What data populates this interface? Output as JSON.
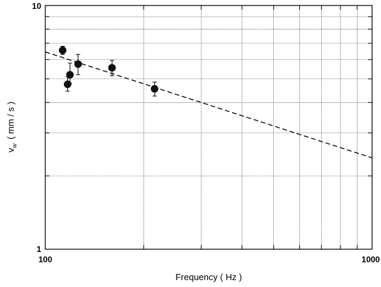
{
  "chart_data": {
    "type": "scatter",
    "xlabel": "Frequency  ( Hz )",
    "ylabel_main": "v",
    "ylabel_sub": "w",
    "ylabel_unit": "( mm / s )",
    "x_scale": "log",
    "y_scale": "log",
    "xlim": [
      100,
      1000
    ],
    "ylim": [
      1,
      10
    ],
    "x_tick_labels": [
      "100",
      "1000"
    ],
    "y_tick_labels": [
      "1",
      "10"
    ],
    "grid": true,
    "colors": {
      "points": "#111111",
      "fit_line": "#000000",
      "grid": "#000000"
    },
    "series": [
      {
        "marker": "filled-circle",
        "points": [
          {
            "x": 113,
            "y": 6.55,
            "err_low": 6.3,
            "err_high": 6.8
          },
          {
            "x": 117,
            "y": 4.75,
            "err_low": 4.45,
            "err_high": 5.1
          },
          {
            "x": 119,
            "y": 5.2,
            "err_low": 4.8,
            "err_high": 5.8
          },
          {
            "x": 126,
            "y": 5.75,
            "err_low": 5.2,
            "err_high": 6.3
          },
          {
            "x": 160,
            "y": 5.55,
            "err_low": 5.15,
            "err_high": 5.95
          },
          {
            "x": 216,
            "y": 4.55,
            "err_low": 4.25,
            "err_high": 4.85
          }
        ]
      }
    ],
    "fit_line": {
      "style": "dashed",
      "points": [
        {
          "x": 100,
          "y": 6.45
        },
        {
          "x": 1000,
          "y": 2.37
        }
      ]
    }
  }
}
